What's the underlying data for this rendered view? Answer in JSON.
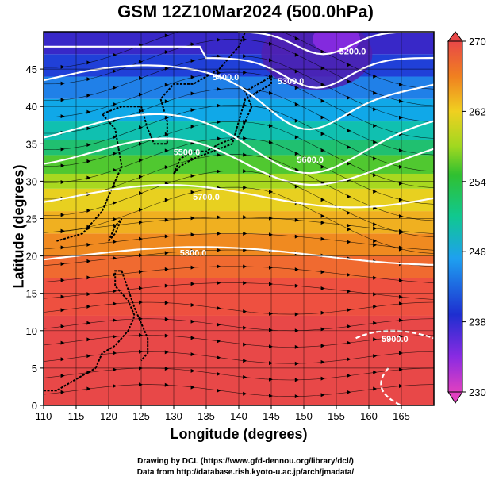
{
  "title": "GSM 12Z10Mar2024 (500.0hPa)",
  "chart_data": {
    "type": "heatmap",
    "xlabel": "Longitude (degrees)",
    "ylabel": "Latitude  (degrees)",
    "xlim": [
      110,
      170
    ],
    "ylim": [
      0,
      50
    ],
    "x_ticks": [
      "110",
      "115",
      "120",
      "125",
      "130",
      "135",
      "140",
      "145",
      "150",
      "155",
      "160",
      "165"
    ],
    "y_ticks": [
      "0",
      "5",
      "10",
      "15",
      "20",
      "25",
      "30",
      "35",
      "40",
      "45"
    ],
    "colorbar": {
      "min": 230,
      "max": 270,
      "tick_labels": [
        "230",
        "238",
        "246",
        "254",
        "262",
        "270"
      ],
      "tick_values": [
        230,
        238,
        246,
        254,
        262,
        270
      ]
    },
    "contour_labels": [
      {
        "text": "5200.0",
        "lon": 157.5,
        "lat": 47
      },
      {
        "text": "5300.0",
        "lon": 148,
        "lat": 43
      },
      {
        "text": "5400.0",
        "lon": 138,
        "lat": 43.5
      },
      {
        "text": "5500.0",
        "lon": 132,
        "lat": 33.5
      },
      {
        "text": "5600.0",
        "lon": 151,
        "lat": 32.5
      },
      {
        "text": "5700.0",
        "lon": 135,
        "lat": 27.5
      },
      {
        "text": "5800.0",
        "lon": 133,
        "lat": 20
      },
      {
        "text": "5900.0",
        "lon": 164,
        "lat": 8.5
      }
    ],
    "contour_values": [
      5200,
      5300,
      5400,
      5500,
      5600,
      5700,
      5800,
      5900
    ]
  },
  "credits": {
    "line1": "Drawing by DCL (https://www.gfd-dennou.org/library/dcl/)",
    "line2": "Data from http://database.rish.kyoto-u.ac.jp/arch/jmadata/"
  }
}
